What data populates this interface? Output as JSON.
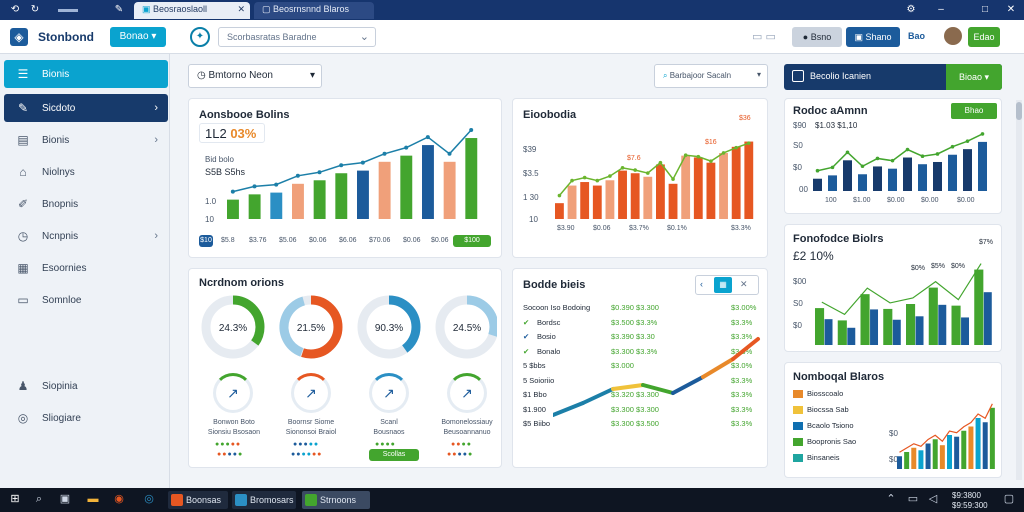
{
  "browser": {
    "tabs": [
      {
        "label": "Beosraoslaoll"
      },
      {
        "label": "Beosrnsnnd Blaros"
      }
    ],
    "window_controls": [
      "–",
      "□",
      "✕"
    ]
  },
  "header": {
    "app_name": "Stonbond",
    "primary_button": "Bonao",
    "search_placeholder": "Scorbasratas Baradne",
    "btn_gray": "Bsno",
    "btn_blue": "Shano",
    "btn_plain": "Bao",
    "btn_green": "Edao"
  },
  "sidebar": {
    "items": [
      {
        "label": "Bionis",
        "icon": "menu-icon"
      },
      {
        "label": "Sicdoto",
        "icon": "edit-icon"
      },
      {
        "label": "Bionis",
        "icon": "window-icon"
      },
      {
        "label": "Niolnys",
        "icon": "home-icon"
      },
      {
        "label": "Bnopnis",
        "icon": "pencil-icon"
      },
      {
        "label": "Ncnpnis",
        "icon": "clock-icon"
      },
      {
        "label": "Esoornies",
        "icon": "calendar-icon"
      },
      {
        "label": "Somnloe",
        "icon": "chat-icon"
      },
      {
        "label": "Siopinia",
        "icon": "user-icon"
      },
      {
        "label": "Sliogiare",
        "icon": "settings-icon"
      }
    ]
  },
  "toolbar": {
    "dropdown": "Bmtorno Neon",
    "search": "Barbajoor Sacaln",
    "report_button": "Becolio Icanien",
    "report_action": "Bioao"
  },
  "card1": {
    "title": "Aonsbooe Bolins",
    "kpi_main": "1L2",
    "kpi_pct": "03%",
    "sub_label": "Bid bolo",
    "sub_values": "S5B S5hs",
    "y_labels": [
      "1.0",
      "10"
    ],
    "x_labels": [
      "$5.8",
      "$3.76",
      "$5.06",
      "$0.06",
      "$6.06",
      "$70.06",
      "$0.06",
      "$0.06"
    ],
    "pills": [
      "$10",
      "$100"
    ],
    "chart_data": {
      "type": "bar",
      "categories": [
        "1",
        "2",
        "3",
        "4",
        "5",
        "6",
        "7",
        "8",
        "9",
        "10",
        "11",
        "12"
      ],
      "series": [
        {
          "values": [
            22,
            28,
            30,
            40,
            44,
            52,
            55,
            65,
            72,
            84,
            65,
            92
          ]
        }
      ]
    }
  },
  "card2": {
    "title": "Eioobodia",
    "y_labels": [
      "$39",
      "$3.5",
      "1 30",
      "10"
    ],
    "x_labels": [
      "$3.90",
      "$0.06",
      "$3.7%",
      "$0.1%",
      "$3.3%"
    ],
    "top_labels": [
      "$36",
      "$7.6",
      "$16"
    ],
    "chart_data": {
      "type": "bar",
      "categories": [
        "1",
        "2",
        "3",
        "4",
        "5",
        "6",
        "7",
        "8",
        "9",
        "10",
        "11",
        "12",
        "13",
        "14",
        "15",
        "16"
      ],
      "series": [
        {
          "values": [
            18,
            38,
            42,
            38,
            44,
            55,
            52,
            48,
            62,
            40,
            72,
            70,
            64,
            75,
            82,
            88
          ]
        }
      ]
    }
  },
  "card3": {
    "title": "Rodoc aAmnn",
    "action": "Bhao",
    "y_labels": [
      "$90",
      "S0",
      "$0",
      "00"
    ],
    "legend": "$1.03 $1,10",
    "x_labels": [
      "100",
      "$1.00",
      "$0.00",
      "$0.00",
      "$0.00"
    ],
    "chart_data": {
      "type": "bar",
      "categories": [
        "1",
        "2",
        "3",
        "4",
        "5",
        "6",
        "7",
        "8",
        "9",
        "10",
        "11",
        "12"
      ],
      "series": [
        {
          "values": [
            22,
            28,
            55,
            30,
            44,
            40,
            60,
            48,
            52,
            65,
            75,
            88
          ]
        }
      ]
    }
  },
  "card4": {
    "title": "Ncrdnom orions",
    "donuts": [
      {
        "value": "24.3%",
        "color": "#43a52e",
        "pct": 0.35
      },
      {
        "value": "21.5%",
        "color": "#e65722",
        "pct": 0.55
      },
      {
        "value": "90.3%",
        "color": "#2b8fc4",
        "pct": 0.4
      },
      {
        "value": "24.5%",
        "color": "#9ccbe6",
        "pct": 0.3
      }
    ],
    "icons": [
      {
        "top": "Bonwon Boto",
        "bottom": "Sionsiu Bsosaon"
      },
      {
        "top": "Boornsr Siome",
        "bottom": "Siononsoi Braiol"
      },
      {
        "top": "Scanl",
        "bottom": "Bousnaos"
      },
      {
        "top": "Bomonelossiauy",
        "bottom": "Beusoannanuo"
      }
    ],
    "action": "Scollas"
  },
  "card5": {
    "title": "Bodde bieis",
    "rows": [
      {
        "label": "Socoon Iso Bodoing",
        "v1": "$0.390 $3.300",
        "v2": "$3.00%"
      },
      {
        "label": "Bordsc",
        "v1": "$3.500 $3.3%",
        "v2": "$3.3%"
      },
      {
        "label": "Bosio",
        "v1": "$3.390 $3.30",
        "v2": "$3.3%"
      },
      {
        "label": "Bonalo",
        "v1": "$3.300 $3.3%",
        "v2": "$3.3%"
      },
      {
        "label": "5 $bbs",
        "v1": "$3.000",
        "v2": "$3.0%"
      },
      {
        "label": "5 Soioriio",
        "v1": "",
        "v2": "$3.3%"
      },
      {
        "label": "$1 Bbo",
        "v1": "$3.320 $3.300",
        "v2": "$3.3%"
      },
      {
        "label": "$1.900",
        "v1": "$3.300 $3.300",
        "v2": "$3.3%"
      },
      {
        "label": "$5 Biibo",
        "v1": "$3.300 $3.500",
        "v2": "$3.3%"
      }
    ]
  },
  "card6": {
    "title": "Fonofodce Biolrs",
    "kpi": "£2 10%",
    "y_labels": [
      "$00",
      "S0",
      "$0"
    ],
    "top_labels": [
      "$0%",
      "$5%",
      "$0%",
      "$7%"
    ],
    "chart_data": {
      "type": "bar",
      "categories": [
        "1",
        "2",
        "3",
        "4",
        "5",
        "6",
        "7",
        "8"
      ],
      "series": [
        {
          "values": [
            45,
            30,
            62,
            44,
            50,
            70,
            48,
            92
          ]
        }
      ]
    }
  },
  "card7": {
    "title": "Nomboqal Blaros",
    "legend": [
      "Biosscoalo",
      "Biocssa Sab",
      "Bcaolo Tsiono",
      "Boopronis Sao",
      "Binsaneis"
    ],
    "legend_colors": [
      "#e8892a",
      "#f0c23a",
      "#0f6fb0",
      "#43a52e",
      "#1fa5a0"
    ],
    "y_labels": [
      "$0",
      "$0"
    ],
    "chart_data": {
      "type": "bar",
      "categories": [
        "1",
        "2",
        "3",
        "4",
        "5",
        "6",
        "7",
        "8",
        "9",
        "10",
        "11",
        "12",
        "13",
        "14"
      ],
      "series": [
        {
          "values": [
            15,
            20,
            25,
            22,
            30,
            35,
            28,
            40,
            38,
            45,
            50,
            60,
            55,
            72
          ]
        }
      ]
    }
  },
  "taskbar": {
    "apps": [
      "Boonsas",
      "Bromosars",
      "Strnoons"
    ],
    "clock_time": "$9:3800",
    "clock_date": "$9:59:300"
  }
}
